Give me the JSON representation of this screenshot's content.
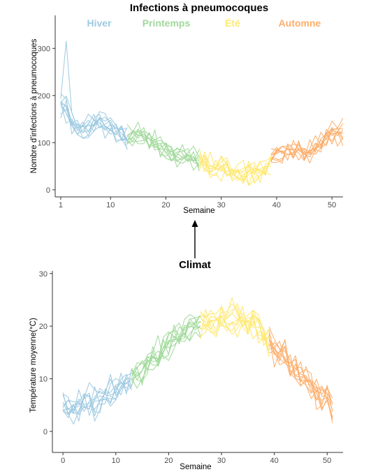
{
  "colors": {
    "Hiver": "#9ecae1",
    "Printemps": "#a1d99b",
    "Été": "#fee870",
    "Automne": "#fdae6b"
  },
  "chart_data": [
    {
      "type": "line",
      "title": "Infections à pneumocoques",
      "xlabel": "Semaine",
      "ylabel": "Nombre d'infections à pneumocoques",
      "xlim": [
        0,
        52
      ],
      "ylim": [
        -15,
        370
      ],
      "xticks": [
        1,
        10,
        20,
        30,
        40,
        50
      ],
      "yticks": [
        0,
        100,
        200,
        300
      ],
      "legend": {
        "placement": "top",
        "labels": [
          "Hiver",
          "Printemps",
          "Été",
          "Automne"
        ]
      },
      "seasons": [
        {
          "name": "Hiver",
          "weeks": [
            1,
            13
          ]
        },
        {
          "name": "Printemps",
          "weeks": [
            13,
            26
          ]
        },
        {
          "name": "Été",
          "weeks": [
            26,
            39
          ]
        },
        {
          "name": "Automne",
          "weeks": [
            39,
            52
          ]
        }
      ],
      "series_count": 10,
      "mean_profile": {
        "x": [
          1,
          2,
          3,
          4,
          5,
          6,
          7,
          8,
          9,
          10,
          11,
          12,
          13,
          14,
          15,
          16,
          17,
          18,
          19,
          20,
          21,
          22,
          23,
          24,
          25,
          26,
          27,
          28,
          29,
          30,
          31,
          32,
          33,
          34,
          35,
          36,
          37,
          38,
          39,
          40,
          41,
          42,
          43,
          44,
          45,
          46,
          47,
          48,
          49,
          50,
          51
        ],
        "y": [
          175,
          170,
          150,
          135,
          128,
          130,
          140,
          145,
          140,
          130,
          122,
          115,
          112,
          115,
          118,
          115,
          105,
          95,
          88,
          82,
          78,
          75,
          72,
          68,
          64,
          60,
          56,
          52,
          48,
          45,
          42,
          40,
          38,
          36,
          35,
          36,
          40,
          50,
          65,
          80,
          85,
          85,
          84,
          82,
          80,
          82,
          88,
          95,
          105,
          115,
          125
        ]
      },
      "peak": {
        "x": 2,
        "y": 315
      },
      "noise": 18
    },
    {
      "type": "line",
      "title": "Climat",
      "xlabel": "Semaine",
      "ylabel": "Température moyenne(°C)",
      "xlim": [
        -2,
        53
      ],
      "ylim": [
        -4,
        30.5
      ],
      "xticks": [
        0,
        10,
        20,
        30,
        40,
        50
      ],
      "yticks": [
        0,
        10,
        20,
        30
      ],
      "seasons": [
        {
          "name": "Hiver",
          "weeks": [
            0,
            13
          ]
        },
        {
          "name": "Printemps",
          "weeks": [
            13,
            26
          ]
        },
        {
          "name": "Été",
          "weeks": [
            26,
            39
          ]
        },
        {
          "name": "Automne",
          "weeks": [
            39,
            51
          ]
        }
      ],
      "series_count": 10,
      "mean_profile": {
        "x": [
          0,
          1,
          2,
          3,
          4,
          5,
          6,
          7,
          8,
          9,
          10,
          11,
          12,
          13,
          14,
          15,
          16,
          17,
          18,
          19,
          20,
          21,
          22,
          23,
          24,
          25,
          26,
          27,
          28,
          29,
          30,
          31,
          32,
          33,
          34,
          35,
          36,
          37,
          38,
          39,
          40,
          41,
          42,
          43,
          44,
          45,
          46,
          47,
          48,
          49,
          50,
          51
        ],
        "y": [
          5,
          4.5,
          4,
          4.5,
          5,
          5.5,
          5.5,
          6,
          6.5,
          7,
          7.5,
          8.5,
          9,
          10,
          11,
          12,
          13,
          14,
          15,
          15.5,
          16.5,
          17.5,
          18.5,
          19,
          19.5,
          20,
          20,
          20.5,
          21,
          21,
          21.5,
          21.5,
          22,
          21.5,
          21,
          20.5,
          20,
          19,
          18,
          17,
          16,
          15,
          14,
          13,
          12,
          11,
          10,
          9,
          8,
          7,
          5.5,
          4
        ]
      },
      "noise": 2.2
    }
  ]
}
